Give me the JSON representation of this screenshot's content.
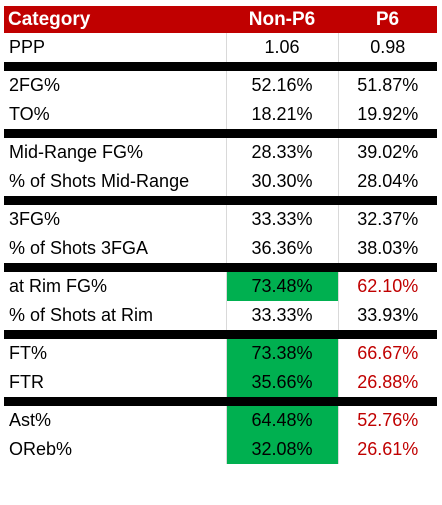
{
  "header": {
    "category": "Category",
    "col1": "Non-P6",
    "col2": "P6"
  },
  "groups": [
    [
      {
        "label": "PPP",
        "non_p6": "1.06",
        "p6": "0.98",
        "highlight": false
      }
    ],
    [
      {
        "label": "2FG%",
        "non_p6": "52.16%",
        "p6": "51.87%",
        "highlight": false
      },
      {
        "label": "TO%",
        "non_p6": "18.21%",
        "p6": "19.92%",
        "highlight": false
      }
    ],
    [
      {
        "label": "Mid-Range FG%",
        "non_p6": "28.33%",
        "p6": "39.02%",
        "highlight": false
      },
      {
        "label": "% of Shots Mid-Range",
        "non_p6": "30.30%",
        "p6": "28.04%",
        "highlight": false
      }
    ],
    [
      {
        "label": "3FG%",
        "non_p6": "33.33%",
        "p6": "32.37%",
        "highlight": false
      },
      {
        "label": "% of Shots 3FGA",
        "non_p6": "36.36%",
        "p6": "38.03%",
        "highlight": false
      }
    ],
    [
      {
        "label": "at Rim FG%",
        "non_p6": "73.48%",
        "p6": "62.10%",
        "highlight": true
      },
      {
        "label": "% of Shots at Rim",
        "non_p6": "33.33%",
        "p6": "33.93%",
        "highlight": false
      }
    ],
    [
      {
        "label": "FT%",
        "non_p6": "73.38%",
        "p6": "66.67%",
        "highlight": true
      },
      {
        "label": "FTR",
        "non_p6": "35.66%",
        "p6": "26.88%",
        "highlight": true
      }
    ],
    [
      {
        "label": "Ast%",
        "non_p6": "64.48%",
        "p6": "52.76%",
        "highlight": true
      },
      {
        "label": "OReb%",
        "non_p6": "32.08%",
        "p6": "26.61%",
        "highlight": true
      }
    ]
  ],
  "colors": {
    "header_bg": "#c00000",
    "highlight_green": "#00b050",
    "highlight_red_text": "#c00000",
    "separator": "#000000"
  }
}
